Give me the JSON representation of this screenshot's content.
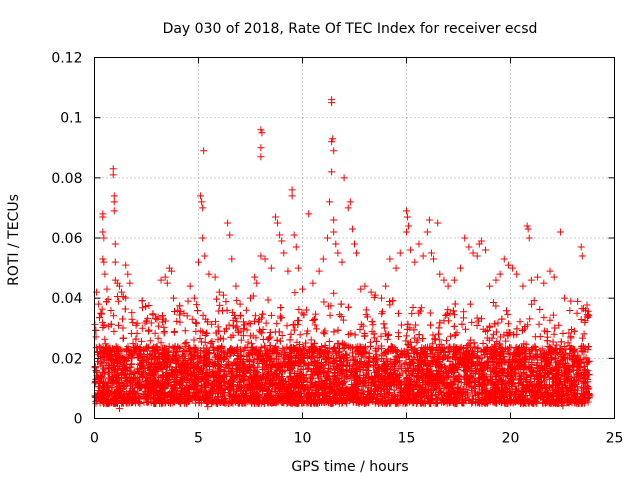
{
  "chart_data": {
    "type": "scatter",
    "title": "Day 030 of 2018, Rate Of TEC Index for receiver ecsd",
    "xlabel": "GPS time / hours",
    "ylabel": "ROTI / TECUs",
    "xlim": [
      0,
      25
    ],
    "ylim": [
      0,
      0.12
    ],
    "x_ticks": [
      "0",
      "5",
      "10",
      "15",
      "20",
      "25"
    ],
    "y_ticks": [
      "0",
      "0.02",
      "0.04",
      "0.06",
      "0.08",
      "0.1",
      "0.12"
    ],
    "grid": true,
    "marker": "plus",
    "color": "#ff0000",
    "x_data_range": [
      0,
      23.8
    ],
    "typical_range": [
      0.003,
      0.03
    ],
    "points": [
      [
        0.1,
        0.042
      ],
      [
        0.2,
        0.038
      ],
      [
        0.3,
        0.035
      ],
      [
        0.4,
        0.067
      ],
      [
        0.4,
        0.068
      ],
      [
        0.4,
        0.062
      ],
      [
        0.45,
        0.06
      ],
      [
        0.4,
        0.053
      ],
      [
        0.45,
        0.052
      ],
      [
        0.5,
        0.048
      ],
      [
        0.6,
        0.043
      ],
      [
        0.9,
        0.083
      ],
      [
        0.9,
        0.081
      ],
      [
        0.95,
        0.074
      ],
      [
        0.95,
        0.072
      ],
      [
        0.95,
        0.069
      ],
      [
        1.0,
        0.058
      ],
      [
        1.0,
        0.052
      ],
      [
        1.0,
        0.046
      ],
      [
        1.1,
        0.045
      ],
      [
        1.2,
        0.044
      ],
      [
        1.3,
        0.042
      ],
      [
        1.5,
        0.051
      ],
      [
        1.6,
        0.048
      ],
      [
        1.7,
        0.045
      ],
      [
        1.5,
        0.04
      ],
      [
        1.8,
        0.033
      ],
      [
        2.0,
        0.031
      ],
      [
        2.3,
        0.03
      ],
      [
        2.6,
        0.029
      ],
      [
        3.0,
        0.033
      ],
      [
        3.2,
        0.046
      ],
      [
        3.4,
        0.047
      ],
      [
        3.5,
        0.045
      ],
      [
        3.6,
        0.05
      ],
      [
        3.7,
        0.049
      ],
      [
        3.8,
        0.04
      ],
      [
        4.0,
        0.036
      ],
      [
        4.3,
        0.035
      ],
      [
        4.5,
        0.039
      ],
      [
        4.6,
        0.044
      ],
      [
        4.7,
        0.033
      ],
      [
        4.8,
        0.04
      ],
      [
        5.0,
        0.052
      ],
      [
        5.1,
        0.074
      ],
      [
        5.15,
        0.072
      ],
      [
        5.2,
        0.07
      ],
      [
        5.25,
        0.089
      ],
      [
        5.2,
        0.06
      ],
      [
        5.3,
        0.054
      ],
      [
        5.5,
        0.048
      ],
      [
        5.8,
        0.047
      ],
      [
        6.0,
        0.042
      ],
      [
        6.2,
        0.041
      ],
      [
        6.4,
        0.065
      ],
      [
        6.5,
        0.061
      ],
      [
        6.6,
        0.053
      ],
      [
        6.8,
        0.044
      ],
      [
        7.0,
        0.038
      ],
      [
        7.3,
        0.036
      ],
      [
        7.5,
        0.04
      ],
      [
        7.7,
        0.047
      ],
      [
        7.8,
        0.045
      ],
      [
        8.0,
        0.096
      ],
      [
        8.05,
        0.095
      ],
      [
        8.0,
        0.09
      ],
      [
        8.0,
        0.087
      ],
      [
        8.0,
        0.054
      ],
      [
        8.2,
        0.053
      ],
      [
        8.5,
        0.05
      ],
      [
        8.7,
        0.067
      ],
      [
        8.8,
        0.065
      ],
      [
        8.9,
        0.061
      ],
      [
        9.0,
        0.059
      ],
      [
        9.1,
        0.055
      ],
      [
        9.3,
        0.049
      ],
      [
        9.5,
        0.076
      ],
      [
        9.5,
        0.074
      ],
      [
        9.6,
        0.061
      ],
      [
        9.7,
        0.057
      ],
      [
        9.8,
        0.05
      ],
      [
        10.0,
        0.043
      ],
      [
        10.3,
        0.068
      ],
      [
        10.5,
        0.045
      ],
      [
        10.8,
        0.049
      ],
      [
        11.0,
        0.053
      ],
      [
        11.2,
        0.06
      ],
      [
        11.3,
        0.072
      ],
      [
        11.4,
        0.105
      ],
      [
        11.4,
        0.106
      ],
      [
        11.45,
        0.093
      ],
      [
        11.4,
        0.092
      ],
      [
        11.5,
        0.089
      ],
      [
        11.4,
        0.082
      ],
      [
        11.5,
        0.066
      ],
      [
        11.5,
        0.062
      ],
      [
        11.6,
        0.058
      ],
      [
        11.7,
        0.055
      ],
      [
        11.9,
        0.052
      ],
      [
        12.0,
        0.08
      ],
      [
        12.2,
        0.07
      ],
      [
        12.3,
        0.072
      ],
      [
        12.4,
        0.063
      ],
      [
        12.5,
        0.058
      ],
      [
        12.6,
        0.055
      ],
      [
        12.8,
        0.043
      ],
      [
        13.0,
        0.044
      ],
      [
        13.3,
        0.042
      ],
      [
        13.5,
        0.041
      ],
      [
        13.8,
        0.04
      ],
      [
        14.0,
        0.044
      ],
      [
        14.2,
        0.053
      ],
      [
        14.5,
        0.05
      ],
      [
        14.7,
        0.055
      ],
      [
        15.0,
        0.069
      ],
      [
        15.05,
        0.067
      ],
      [
        15.1,
        0.064
      ],
      [
        15.0,
        0.062
      ],
      [
        15.2,
        0.056
      ],
      [
        15.4,
        0.052
      ],
      [
        15.6,
        0.058
      ],
      [
        15.8,
        0.054
      ],
      [
        16.0,
        0.062
      ],
      [
        16.1,
        0.066
      ],
      [
        16.2,
        0.055
      ],
      [
        16.3,
        0.053
      ],
      [
        16.5,
        0.065
      ],
      [
        16.6,
        0.048
      ],
      [
        16.8,
        0.046
      ],
      [
        17.0,
        0.044
      ],
      [
        17.3,
        0.046
      ],
      [
        17.6,
        0.05
      ],
      [
        17.8,
        0.06
      ],
      [
        18.0,
        0.057
      ],
      [
        18.2,
        0.055
      ],
      [
        18.4,
        0.054
      ],
      [
        18.5,
        0.058
      ],
      [
        18.6,
        0.059
      ],
      [
        18.8,
        0.056
      ],
      [
        19.0,
        0.044
      ],
      [
        19.3,
        0.046
      ],
      [
        19.5,
        0.048
      ],
      [
        19.7,
        0.053
      ],
      [
        19.9,
        0.051
      ],
      [
        20.1,
        0.05
      ],
      [
        20.3,
        0.048
      ],
      [
        20.6,
        0.044
      ],
      [
        20.8,
        0.064
      ],
      [
        20.85,
        0.063
      ],
      [
        20.9,
        0.06
      ],
      [
        21.0,
        0.046
      ],
      [
        21.3,
        0.047
      ],
      [
        21.6,
        0.045
      ],
      [
        21.9,
        0.049
      ],
      [
        22.1,
        0.047
      ],
      [
        22.4,
        0.062
      ],
      [
        22.6,
        0.04
      ],
      [
        22.9,
        0.039
      ],
      [
        23.2,
        0.035
      ],
      [
        23.4,
        0.057
      ],
      [
        23.45,
        0.054
      ],
      [
        23.6,
        0.036
      ],
      [
        23.7,
        0.034
      ]
    ]
  }
}
